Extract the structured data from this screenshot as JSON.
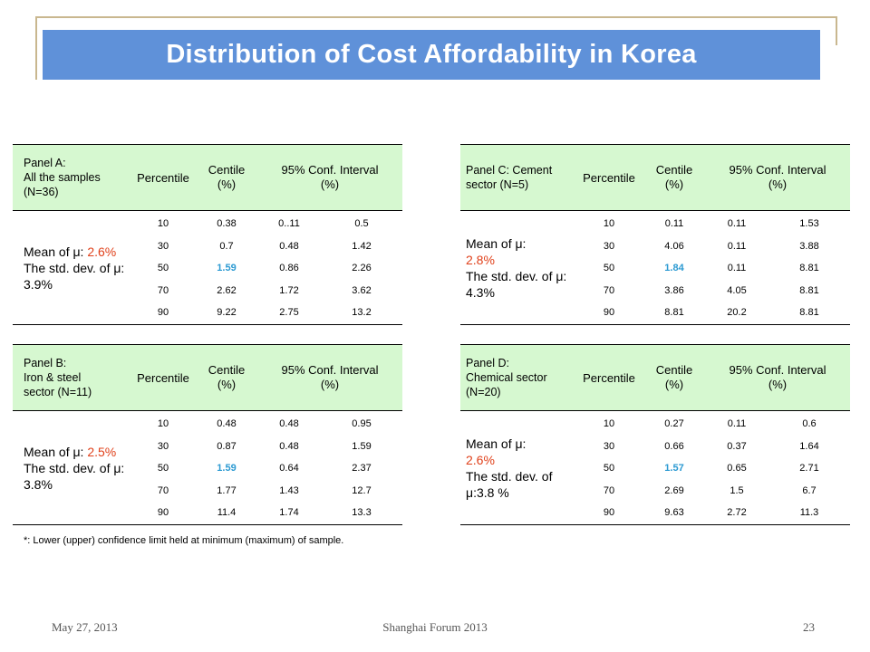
{
  "title": "Distribution of Cost Affordability in Korea",
  "headers": {
    "percentile": "Percentile",
    "centile_line1": "Centile",
    "centile_line2": "(%)",
    "ci_line1": "95% Conf. Interval",
    "ci_line2": "(%)"
  },
  "panels": {
    "A": {
      "label": [
        "Panel A:",
        "All the samples",
        "(N=36)"
      ],
      "mean_prefix": "Mean of μ: ",
      "mean_value": "2.6%",
      "std_text": "The std. dev. of μ: 3.9%",
      "rows": [
        {
          "percentile": "10",
          "centile": "0.38",
          "lower": "0..11",
          "upper": "0.5"
        },
        {
          "percentile": "30",
          "centile": "0.7",
          "lower": "0.48",
          "upper": "1.42"
        },
        {
          "percentile": "50",
          "centile": "1.59",
          "lower": "0.86",
          "upper": "2.26"
        },
        {
          "percentile": "70",
          "centile": "2.62",
          "lower": "1.72",
          "upper": "3.62"
        },
        {
          "percentile": "90",
          "centile": "9.22",
          "lower": "2.75",
          "upper": "13.2"
        }
      ]
    },
    "B": {
      "label": [
        "Panel B:",
        "Iron & steel",
        "sector (N=11)"
      ],
      "mean_prefix": "Mean of μ: ",
      "mean_value": "2.5%",
      "std_text": "The std. dev. of μ: 3.8%",
      "rows": [
        {
          "percentile": "10",
          "centile": "0.48",
          "lower": "0.48",
          "upper": "0.95"
        },
        {
          "percentile": "30",
          "centile": "0.87",
          "lower": "0.48",
          "upper": "1.59"
        },
        {
          "percentile": "50",
          "centile": "1.59",
          "lower": "0.64",
          "upper": "2.37"
        },
        {
          "percentile": "70",
          "centile": "1.77",
          "lower": "1.43",
          "upper": "12.7"
        },
        {
          "percentile": "90",
          "centile": "11.4",
          "lower": "1.74",
          "upper": "13.3"
        }
      ]
    },
    "C": {
      "label": [
        "Panel C: Cement",
        "sector (N=5)"
      ],
      "mean_prefix": "Mean of μ:",
      "mean_value": "2.8%",
      "std_text": "The std. dev. of μ: 4.3%",
      "rows": [
        {
          "percentile": "10",
          "centile": "0.11",
          "lower": "0.11",
          "upper": "1.53"
        },
        {
          "percentile": "30",
          "centile": "4.06",
          "lower": "0.11",
          "upper": "3.88"
        },
        {
          "percentile": "50",
          "centile": "1.84",
          "lower": "0.11",
          "upper": "8.81"
        },
        {
          "percentile": "70",
          "centile": "3.86",
          "lower": "4.05",
          "upper": "8.81"
        },
        {
          "percentile": "90",
          "centile": "8.81",
          "lower": "20.2",
          "upper": "8.81"
        }
      ]
    },
    "D": {
      "label": [
        "Panel D:",
        "Chemical sector",
        "(N=20)"
      ],
      "mean_prefix": "Mean of μ:",
      "mean_value": "2.6%",
      "std_text": "The std. dev. of μ:3.8 %",
      "rows": [
        {
          "percentile": "10",
          "centile": "0.27",
          "lower": "0.11",
          "upper": "0.6"
        },
        {
          "percentile": "30",
          "centile": "0.66",
          "lower": "0.37",
          "upper": "1.64"
        },
        {
          "percentile": "50",
          "centile": "1.57",
          "lower": "0.65",
          "upper": "2.71"
        },
        {
          "percentile": "70",
          "centile": "2.69",
          "lower": "1.5",
          "upper": "6.7"
        },
        {
          "percentile": "90",
          "centile": "9.63",
          "lower": "2.72",
          "upper": "11.3"
        }
      ]
    }
  },
  "highlight_percentile": "50",
  "footnote": "*: Lower (upper) confidence limit held at minimum (maximum) of sample.",
  "footer": {
    "date": "May 27, 2013",
    "event": "Shanghai Forum 2013",
    "page": "23"
  },
  "colors": {
    "title_bg": "#5f91d9",
    "header_bg": "#d6f8d0",
    "mean_value": "#e0401a",
    "highlight_value": "#2c9ad2"
  }
}
